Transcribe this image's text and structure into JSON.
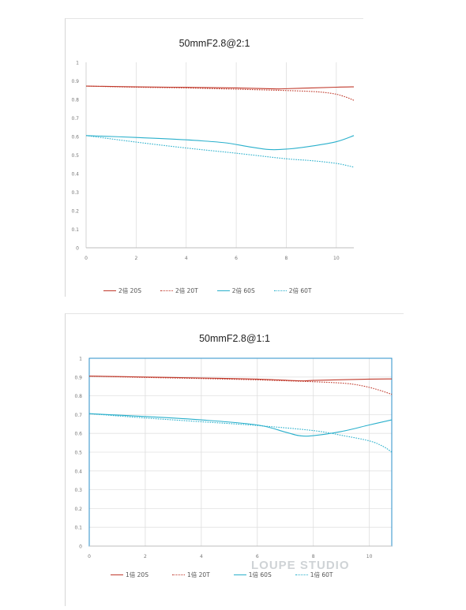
{
  "chart_data": [
    {
      "type": "line",
      "title": "50mmF2.8@2:1",
      "xlim": [
        0,
        10.7
      ],
      "ylim": [
        0,
        1
      ],
      "xticks": [
        0,
        2,
        4,
        6,
        8,
        10
      ],
      "yticks": [
        0,
        0.1,
        0.2,
        0.3,
        0.4,
        0.5,
        0.6,
        0.7,
        0.8,
        0.9,
        1
      ],
      "grid": "vertical",
      "legend_position": "bottom",
      "colors": {
        "red": "#c0392b",
        "cyan": "#2ab0cc"
      },
      "series": [
        {
          "name": "2倍 20S",
          "color": "#c0392b",
          "style": "solid",
          "x": [
            0,
            2,
            4,
            6,
            7.5,
            8,
            10,
            10.7
          ],
          "y": [
            0.872,
            0.868,
            0.865,
            0.862,
            0.857,
            0.858,
            0.866,
            0.868
          ]
        },
        {
          "name": "2倍 20T",
          "color": "#c0392b",
          "style": "dotted",
          "x": [
            0,
            2,
            4,
            6,
            8,
            9,
            9.5,
            10,
            10.4,
            10.7
          ],
          "y": [
            0.872,
            0.866,
            0.862,
            0.855,
            0.848,
            0.843,
            0.838,
            0.828,
            0.812,
            0.795
          ]
        },
        {
          "name": "2倍 60S",
          "color": "#2ab0cc",
          "style": "solid",
          "x": [
            0,
            2,
            4,
            5.5,
            6.5,
            7.3,
            8,
            9,
            10,
            10.7
          ],
          "y": [
            0.605,
            0.595,
            0.582,
            0.567,
            0.545,
            0.53,
            0.532,
            0.548,
            0.572,
            0.605
          ]
        },
        {
          "name": "2倍 60T",
          "color": "#2ab0cc",
          "style": "dotted",
          "x": [
            0,
            2,
            4,
            6,
            8,
            9,
            10,
            10.7
          ],
          "y": [
            0.605,
            0.57,
            0.538,
            0.51,
            0.48,
            0.47,
            0.455,
            0.435
          ]
        }
      ]
    },
    {
      "type": "line",
      "title": "50mmF2.8@1:1",
      "xlim": [
        0,
        10.8
      ],
      "ylim": [
        0,
        1
      ],
      "xticks": [
        0,
        2,
        4,
        6,
        8,
        10
      ],
      "yticks": [
        0,
        0.1,
        0.2,
        0.3,
        0.4,
        0.5,
        0.6,
        0.7,
        0.8,
        0.9,
        1
      ],
      "grid": "both",
      "legend_position": "bottom",
      "colors": {
        "red": "#c0392b",
        "cyan": "#2ab0cc",
        "frame": "#2a8fc9"
      },
      "series": [
        {
          "name": "1倍 20S",
          "color": "#c0392b",
          "style": "solid",
          "x": [
            0,
            2,
            4,
            6,
            7.5,
            8,
            10,
            10.8
          ],
          "y": [
            0.905,
            0.9,
            0.895,
            0.889,
            0.88,
            0.882,
            0.889,
            0.89
          ]
        },
        {
          "name": "1倍 20T",
          "color": "#c0392b",
          "style": "dotted",
          "x": [
            0,
            2,
            4,
            6,
            8,
            9,
            9.5,
            10,
            10.4,
            10.8
          ],
          "y": [
            0.905,
            0.898,
            0.892,
            0.885,
            0.875,
            0.868,
            0.86,
            0.845,
            0.828,
            0.808
          ]
        },
        {
          "name": "1倍 60S",
          "color": "#2ab0cc",
          "style": "solid",
          "x": [
            0,
            2,
            4,
            6,
            7,
            7.5,
            8,
            9,
            10,
            10.8
          ],
          "y": [
            0.705,
            0.69,
            0.672,
            0.645,
            0.607,
            0.588,
            0.588,
            0.61,
            0.645,
            0.672
          ]
        },
        {
          "name": "1倍 60T",
          "color": "#2ab0cc",
          "style": "dotted",
          "x": [
            0,
            2,
            4,
            6,
            8,
            9,
            10,
            10.5,
            10.8
          ],
          "y": [
            0.705,
            0.682,
            0.662,
            0.642,
            0.615,
            0.59,
            0.56,
            0.53,
            0.5
          ]
        }
      ]
    }
  ],
  "watermark": "LOUPE STUDIO"
}
